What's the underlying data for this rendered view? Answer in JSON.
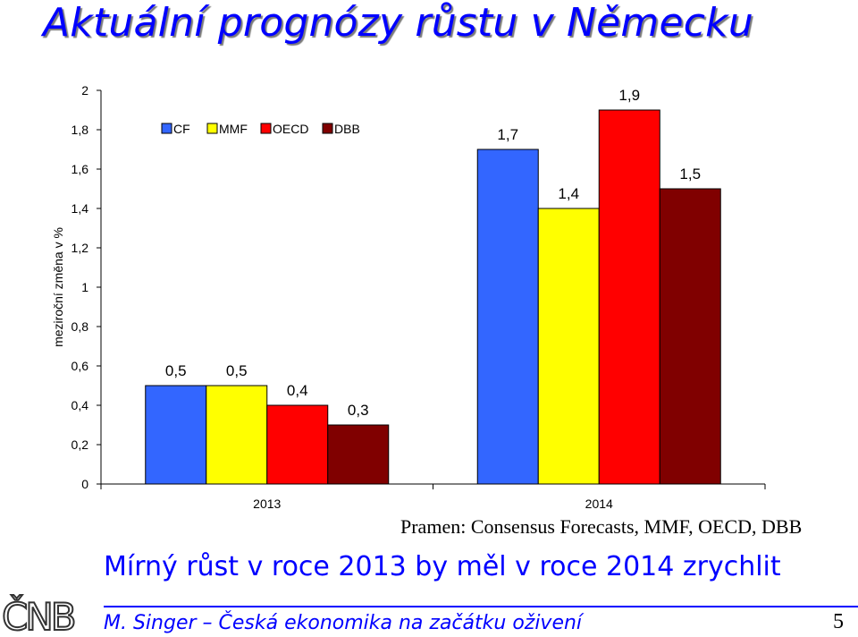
{
  "title": "Aktuální prognózy růstu v Německu",
  "source": "Pramen: Consensus Forecasts, MMF, OECD, DBB",
  "subtitle": "Mírný růst v roce 2013 by měl v roce 2014 zrychlit",
  "footer": "M. Singer – Česká ekonomika na začátku oživení",
  "page_number": "5",
  "logo_text": "ČNB",
  "chart_data": {
    "type": "bar",
    "categories": [
      "2013",
      "2014"
    ],
    "series": [
      {
        "name": "CF",
        "color": "#3366ff",
        "values": [
          0.5,
          1.7
        ],
        "labels": [
          "0,5",
          "1,7"
        ]
      },
      {
        "name": "MMF",
        "color": "#ffff00",
        "values": [
          0.5,
          1.4
        ],
        "labels": [
          "0,5",
          "1,4"
        ]
      },
      {
        "name": "OECD",
        "color": "#ff0000",
        "values": [
          0.4,
          1.9
        ],
        "labels": [
          "0,4",
          "1,9"
        ]
      },
      {
        "name": "DBB",
        "color": "#800000",
        "values": [
          0.3,
          1.5
        ],
        "labels": [
          "0,3",
          "1,5"
        ]
      }
    ],
    "ylabel": "meziroční změna v %",
    "xlabel": "",
    "ylim": [
      0,
      2
    ],
    "yticks": [
      0,
      0.2,
      0.4,
      0.6,
      0.8,
      1,
      1.2,
      1.4,
      1.6,
      1.8,
      2
    ],
    "ytick_labels": [
      "0",
      "0,2",
      "0,4",
      "0,6",
      "0,8",
      "1",
      "1,2",
      "1,4",
      "1,6",
      "1,8",
      "2"
    ],
    "grid": false,
    "legend_position": "top-left"
  }
}
